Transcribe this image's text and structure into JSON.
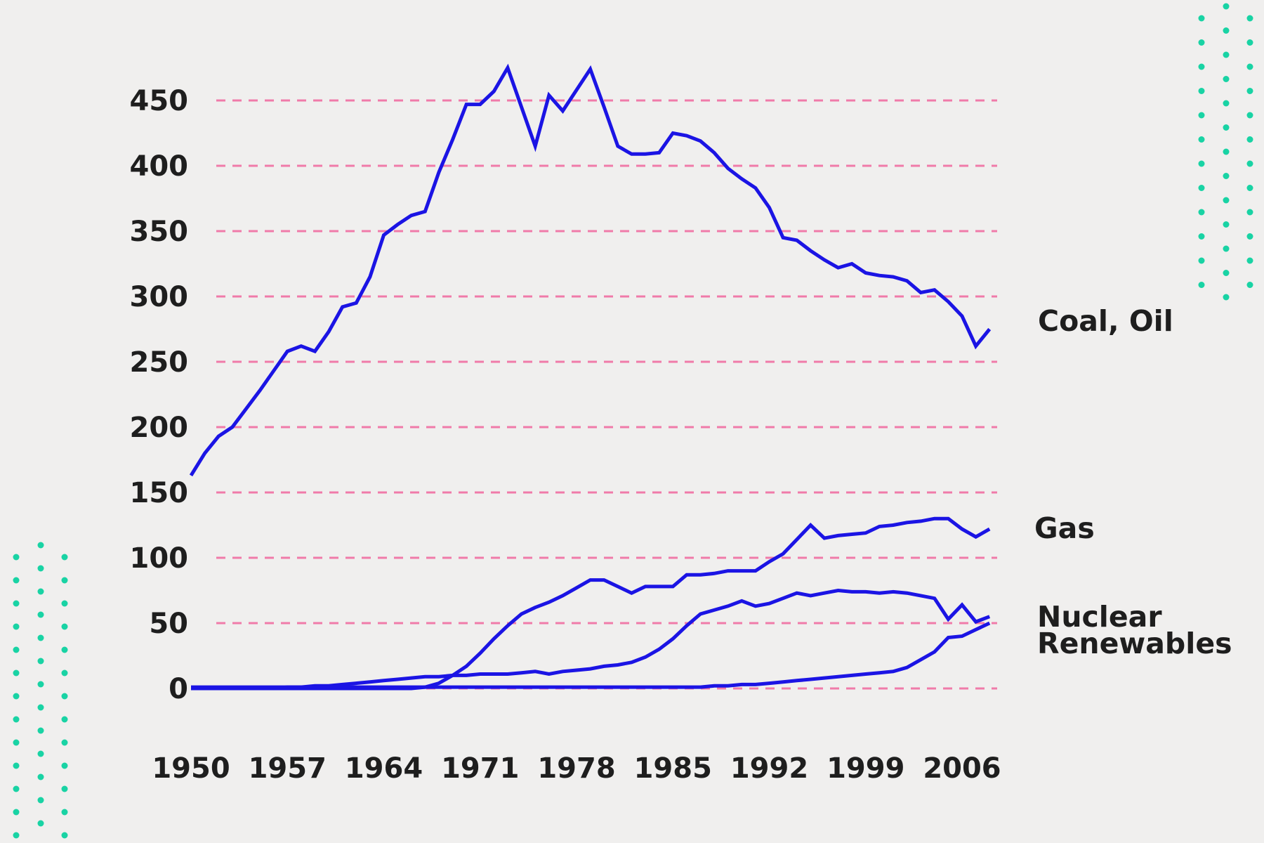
{
  "chart_data": {
    "type": "line",
    "title": "",
    "xlabel": "",
    "ylabel": "",
    "xlim": [
      1950,
      2008
    ],
    "ylim": [
      0,
      480
    ],
    "grid": "horizontal-dashed",
    "legend_position": "right-of-line-ends",
    "x": [
      1950,
      1951,
      1952,
      1953,
      1954,
      1955,
      1956,
      1957,
      1958,
      1959,
      1960,
      1961,
      1962,
      1963,
      1964,
      1965,
      1966,
      1967,
      1968,
      1969,
      1970,
      1971,
      1972,
      1973,
      1974,
      1975,
      1976,
      1977,
      1978,
      1979,
      1980,
      1981,
      1982,
      1983,
      1984,
      1985,
      1986,
      1987,
      1988,
      1989,
      1990,
      1991,
      1992,
      1993,
      1994,
      1995,
      1996,
      1997,
      1998,
      1999,
      2000,
      2001,
      2002,
      2003,
      2004,
      2005,
      2006,
      2007,
      2008
    ],
    "xticks": [
      1950,
      1957,
      1964,
      1971,
      1978,
      1985,
      1992,
      1999,
      2006
    ],
    "yticks": [
      0,
      50,
      100,
      150,
      200,
      250,
      300,
      350,
      400,
      450
    ],
    "series": [
      {
        "name": "Coal, Oil",
        "values": [
          163,
          180,
          193,
          200,
          214,
          228,
          243,
          258,
          262,
          258,
          273,
          292,
          295,
          315,
          347,
          355,
          362,
          365,
          395,
          420,
          447,
          447,
          457,
          475,
          445,
          415,
          454,
          442,
          458,
          474,
          445,
          415,
          409,
          409,
          410,
          425,
          423,
          419,
          410,
          398,
          390,
          383,
          368,
          345,
          343,
          335,
          328,
          322,
          325,
          318,
          316,
          315,
          312,
          303,
          305,
          296,
          285,
          262,
          275
        ]
      },
      {
        "name": "Gas",
        "values": [
          0,
          0,
          0,
          0,
          0,
          0,
          0,
          0,
          0,
          0,
          0,
          0,
          0,
          0,
          0,
          0,
          0,
          1,
          4,
          10,
          17,
          27,
          38,
          48,
          57,
          62,
          66,
          71,
          77,
          83,
          83,
          78,
          73,
          78,
          78,
          78,
          87,
          87,
          88,
          90,
          90,
          90,
          97,
          103,
          114,
          125,
          115,
          117,
          118,
          119,
          124,
          125,
          127,
          128,
          130,
          130,
          122,
          116,
          122
        ]
      },
      {
        "name": "Nuclear",
        "values": [
          0,
          0,
          0,
          0,
          0,
          0,
          0,
          1,
          1,
          2,
          2,
          3,
          4,
          5,
          6,
          7,
          8,
          9,
          9,
          10,
          10,
          11,
          11,
          11,
          12,
          13,
          11,
          13,
          14,
          15,
          17,
          18,
          20,
          24,
          30,
          38,
          48,
          57,
          60,
          63,
          67,
          63,
          65,
          69,
          73,
          71,
          73,
          75,
          74,
          74,
          73,
          74,
          73,
          71,
          69,
          53,
          64,
          51,
          55
        ]
      },
      {
        "name": "Renewables",
        "values": [
          1,
          1,
          1,
          1,
          1,
          1,
          1,
          1,
          1,
          1,
          1,
          1,
          1,
          1,
          1,
          1,
          1,
          1,
          1,
          1,
          1,
          1,
          1,
          1,
          1,
          1,
          1,
          1,
          1,
          1,
          1,
          1,
          1,
          1,
          1,
          1,
          1,
          1,
          2,
          2,
          3,
          3,
          4,
          5,
          6,
          7,
          8,
          9,
          10,
          11,
          12,
          13,
          16,
          22,
          28,
          39,
          40,
          45,
          50
        ]
      }
    ]
  },
  "colors": {
    "line_blue": "#1b14e4",
    "grid_pink": "#f07ba9",
    "dot_teal": "#19d3a4",
    "background": "#f0efee",
    "text_dark": "#1e1e1e"
  }
}
